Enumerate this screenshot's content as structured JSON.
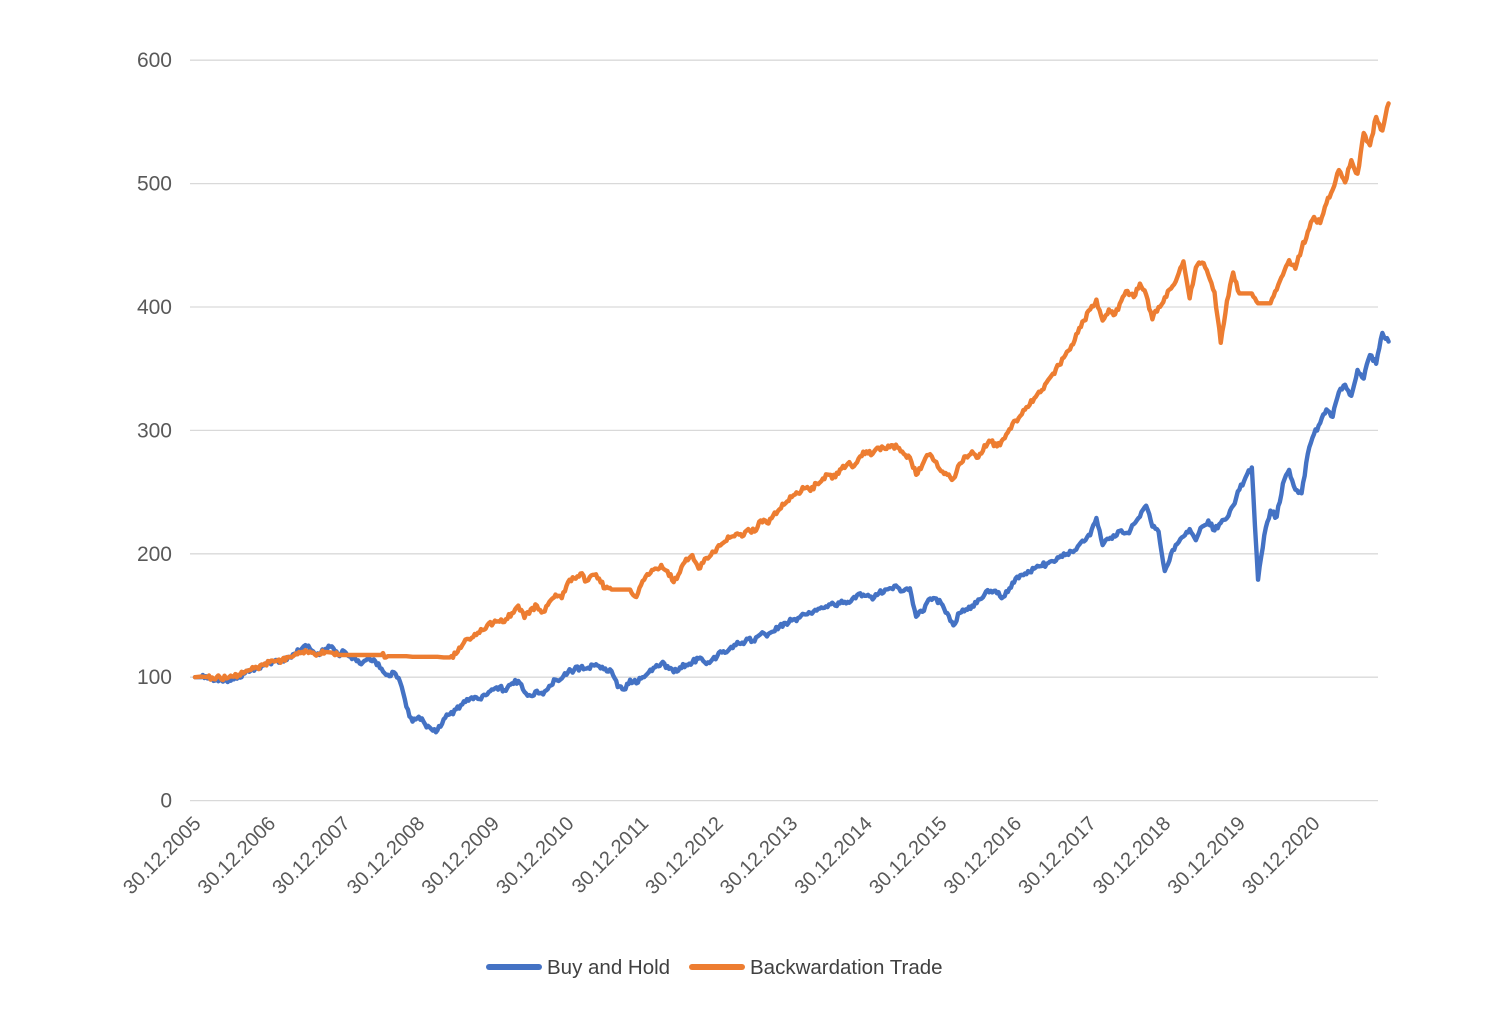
{
  "page": {
    "background": "#ffffff"
  },
  "chart_data": {
    "type": "line",
    "title": "",
    "xlabel": "",
    "ylabel": "",
    "ylim": [
      0,
      600
    ],
    "y_ticks": [
      0,
      100,
      200,
      300,
      400,
      500,
      600
    ],
    "grid": "horizontal",
    "grid_color": "#D9D9D9",
    "tick_label_color": "#595959",
    "legend_position": "bottom-center",
    "x_frequency": "monthly",
    "x_start_label": "30.12.2005",
    "x_tick_labels": [
      "30.12.2005",
      "30.12.2006",
      "30.12.2007",
      "30.12.2008",
      "30.12.2009",
      "30.12.2010",
      "30.12.2011",
      "30.12.2012",
      "30.12.2013",
      "30.12.2014",
      "30.12.2015",
      "30.12.2016",
      "30.12.2017",
      "30.12.2018",
      "30.12.2019",
      "30.12.2020"
    ],
    "series": [
      {
        "name": "Buy and Hold",
        "color": "#4472C4",
        "values": [
          100,
          100,
          99,
          97,
          99,
          97.5,
          99,
          101,
          103,
          105.5,
          107,
          109.5,
          112,
          114,
          113,
          116.5,
          119,
          122,
          125,
          121,
          118,
          123,
          125,
          118,
          121,
          117,
          113,
          112,
          116,
          113,
          107,
          102,
          104,
          96,
          76,
          64,
          68,
          62,
          58,
          57,
          66,
          70,
          74,
          78,
          81,
          84,
          82,
          86,
          90,
          92,
          89,
          95,
          97,
          88,
          85,
          89,
          86,
          93,
          98,
          99,
          104,
          106,
          108,
          107,
          110,
          109,
          107,
          105,
          92,
          90,
          98,
          95,
          100,
          104,
          108,
          111,
          109,
          104,
          108,
          110,
          112,
          115,
          112,
          113,
          117,
          121,
          123,
          126,
          128,
          131,
          129,
          135,
          133,
          137,
          141,
          144,
          146,
          148,
          151,
          152,
          154,
          156,
          159,
          158,
          162,
          161,
          165,
          168,
          166,
          163,
          168,
          171,
          172,
          173,
          170,
          172,
          149,
          153,
          163,
          164,
          160,
          152,
          142,
          152,
          155,
          158,
          163,
          167,
          170,
          168,
          165,
          172,
          180,
          183,
          186,
          188,
          190,
          192,
          194,
          197,
          199,
          202,
          206,
          210,
          215,
          229,
          207,
          212,
          214,
          219,
          217,
          224,
          230,
          239,
          222,
          218,
          186,
          200,
          208,
          214,
          220,
          211,
          222,
          227,
          219,
          225,
          229,
          239,
          252,
          262,
          270,
          179,
          215,
          235,
          230,
          257,
          268,
          252,
          249,
          281,
          297,
          306,
          317,
          311,
          331,
          337,
          328,
          349,
          342,
          361,
          354,
          379,
          372
        ]
      },
      {
        "name": "Backwardation Trade",
        "color": "#ED7D31",
        "values": [
          100,
          100.5,
          100,
          98.5,
          100,
          99,
          100.5,
          102,
          104,
          106,
          108,
          110,
          112,
          113,
          114,
          116,
          118,
          119.5,
          121,
          120,
          119,
          120.5,
          120,
          118,
          118,
          118,
          118,
          118,
          118,
          118,
          118,
          117,
          117,
          117,
          117,
          116.5,
          116.5,
          116.5,
          116.5,
          116.5,
          116,
          116,
          119,
          126,
          131,
          135,
          139,
          142,
          144,
          145,
          147,
          152,
          158,
          148,
          155,
          158,
          153,
          161,
          167,
          164,
          177,
          180,
          184,
          178,
          183,
          180,
          172,
          171,
          171,
          171,
          171,
          165,
          178,
          183,
          188,
          191,
          186,
          177,
          185,
          196,
          199,
          188,
          196,
          199,
          205,
          209,
          213,
          216,
          214,
          220,
          218,
          227,
          225,
          231,
          236,
          241,
          246,
          249,
          253,
          251,
          257,
          261,
          264,
          262,
          269,
          273,
          271,
          279,
          283,
          281,
          286,
          285,
          288,
          286,
          281,
          278,
          264,
          272,
          280,
          275,
          267,
          264,
          261,
          273,
          279,
          283,
          278,
          288,
          291,
          287,
          293,
          301,
          308,
          313,
          319,
          326,
          331,
          339,
          346,
          353,
          361,
          369,
          379,
          389,
          398,
          406,
          389,
          398,
          394,
          405,
          413,
          408,
          419,
          410,
          390,
          400,
          408,
          415,
          424,
          437,
          407,
          432,
          436,
          426,
          412,
          371,
          405,
          428,
          411,
          411,
          411,
          403,
          403,
          403,
          414,
          426,
          438,
          431,
          447,
          461,
          473,
          468,
          484,
          495,
          511,
          501,
          519,
          508,
          541,
          531,
          554,
          543,
          565
        ]
      }
    ]
  }
}
